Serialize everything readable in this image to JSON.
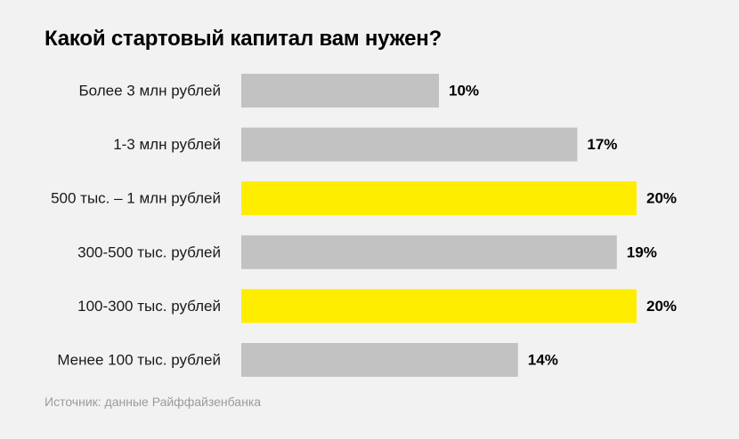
{
  "chart_data": {
    "type": "bar",
    "orientation": "horizontal",
    "title": "Какой стартовый капитал вам нужен?",
    "categories": [
      "Более 3 млн рублей",
      "1-3 млн рублей",
      "500 тыс. – 1 млн рублей",
      "300-500 тыс. рублей",
      "100-300 тыс. рублей",
      "Менее 100 тыс. рублей"
    ],
    "values": [
      10,
      17,
      20,
      19,
      20,
      14
    ],
    "value_labels": [
      "10%",
      "17%",
      "20%",
      "19%",
      "20%",
      "14%"
    ],
    "highlighted": [
      false,
      false,
      true,
      false,
      true,
      false
    ],
    "unit": "%",
    "xlim": [
      0,
      20
    ],
    "grid": false,
    "colors": {
      "bar": "#c2c2c2",
      "highlight": "#ffed00",
      "background": "#f2f2f2"
    }
  },
  "source": "Источник: данные Райффайзенбанка"
}
